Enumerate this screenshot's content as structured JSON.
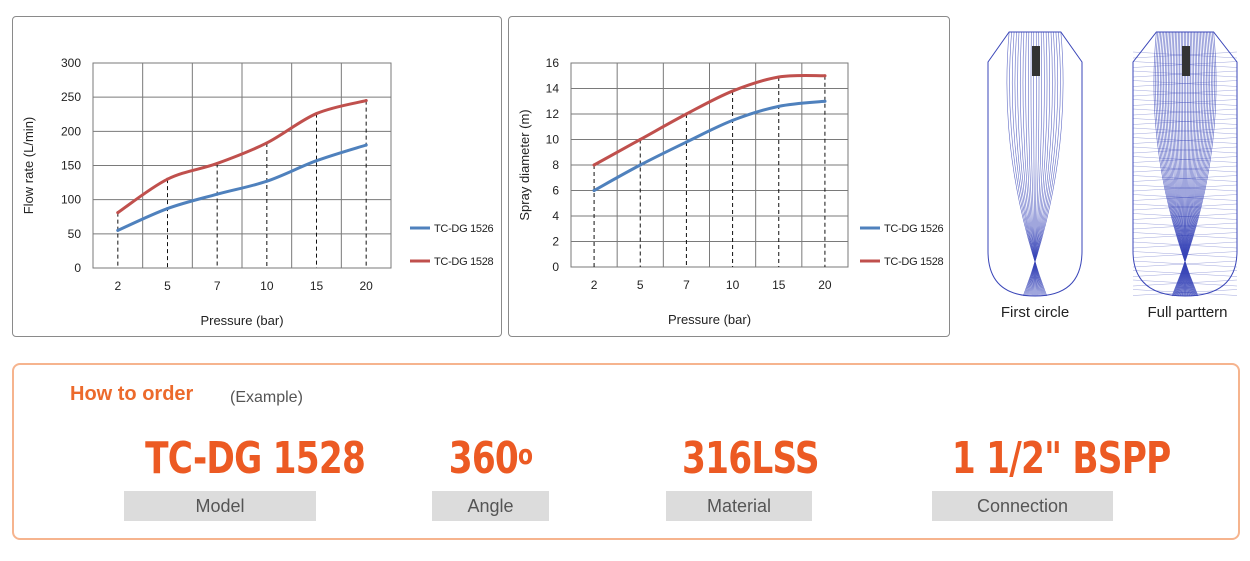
{
  "chart_data": [
    {
      "type": "line",
      "title": "",
      "xlabel": "Pressure (bar)",
      "ylabel": "Flow rate (L/min)",
      "categories": [
        "2",
        "5",
        "7",
        "10",
        "15",
        "20"
      ],
      "ylim": [
        0,
        300
      ],
      "yticks": [
        0,
        50,
        100,
        150,
        200,
        250,
        300
      ],
      "grid": true,
      "legend_position": "right",
      "series": [
        {
          "name": "TC-DG 1526",
          "color": "#4f81bd",
          "values": [
            55,
            87,
            108,
            127,
            157,
            180
          ]
        },
        {
          "name": "TC-DG 1528",
          "color": "#c0504d",
          "values": [
            81,
            130,
            153,
            183,
            226,
            245
          ]
        }
      ]
    },
    {
      "type": "line",
      "title": "",
      "xlabel": "Pressure (bar)",
      "ylabel": "Spray diameter (m)",
      "categories": [
        "2",
        "5",
        "7",
        "10",
        "15",
        "20"
      ],
      "ylim": [
        0,
        16
      ],
      "yticks": [
        0,
        2,
        4,
        6,
        8,
        10,
        12,
        14,
        16
      ],
      "grid": true,
      "legend_position": "right",
      "series": [
        {
          "name": "TC-DG 1526",
          "color": "#4f81bd",
          "values": [
            6,
            8,
            9.8,
            11.5,
            12.6,
            13
          ]
        },
        {
          "name": "TC-DG 1528",
          "color": "#c0504d",
          "values": [
            8,
            10,
            12,
            13.8,
            14.9,
            15
          ]
        }
      ]
    }
  ],
  "patterns": {
    "first_label": "First circle",
    "full_label": "Full parttern"
  },
  "order": {
    "title": "How to order",
    "subtitle": "(Example)",
    "items": [
      {
        "value": "TC-DG 1528",
        "label": "Model"
      },
      {
        "value": "360",
        "label": "Angle"
      },
      {
        "value": "316LSS",
        "label": "Material"
      },
      {
        "value": "1 1/2\" BSPP",
        "label": "Connection"
      }
    ]
  },
  "colors": {
    "accent": "#ec5a23",
    "series1": "#4f81bd",
    "series2": "#c0504d"
  }
}
